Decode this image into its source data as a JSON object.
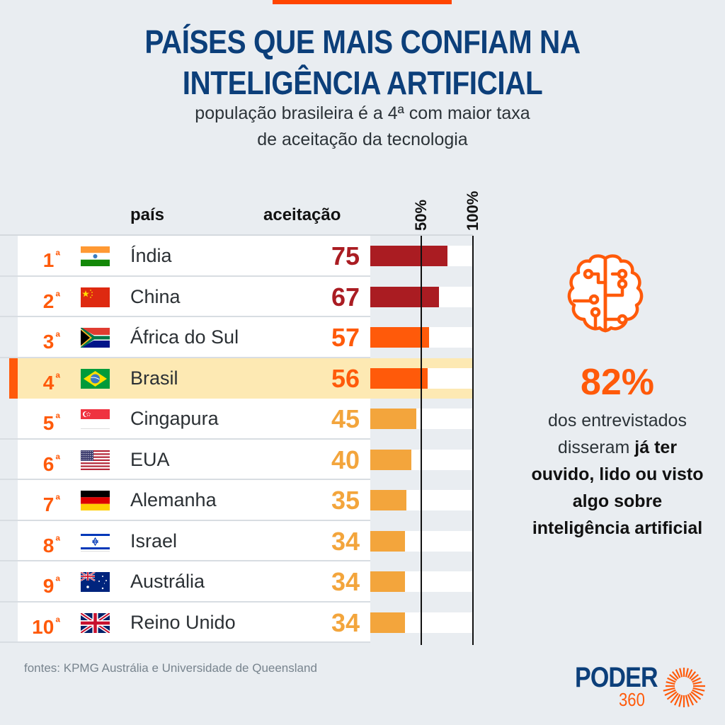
{
  "header": {
    "title_line1": "PAÍSES QUE MAIS CONFIAM NA",
    "title_line2": "INTELIGÊNCIA ARTIFICIAL",
    "subtitle_line1": "população brasileira é a 4ª com maior taxa",
    "subtitle_line2": "de aceitação da tecnologia"
  },
  "columns": {
    "country": "país",
    "acceptance": "aceitação",
    "axis_50": "50%",
    "axis_100": "100%"
  },
  "colors": {
    "accent": "#ff5a0a",
    "title_blue": "#0c3f7a",
    "dark_red": "#aa1c22",
    "orange": "#ff5a0a",
    "light_orange": "#f3a53c",
    "highlight": "#fde9b3",
    "background": "#e9edf1"
  },
  "chart_data": {
    "type": "bar",
    "orientation": "horizontal",
    "title": "PAÍSES QUE MAIS CONFIAM NA INTELIGÊNCIA ARTIFICIAL",
    "subtitle": "população brasileira é a 4ª com maior taxa de aceitação da tecnologia",
    "xlabel": "aceitação",
    "ylabel": "país",
    "xlim": [
      0,
      100
    ],
    "x_ticks": [
      "50%",
      "100%"
    ],
    "highlighted": "Brasil",
    "rows": [
      {
        "rank": "1",
        "rank_suffix": "ª",
        "country": "Índia",
        "flag": "india-flag",
        "value": 75,
        "label": "75",
        "color": "#aa1c22"
      },
      {
        "rank": "2",
        "rank_suffix": "ª",
        "country": "China",
        "flag": "china-flag",
        "value": 67,
        "label": "67",
        "color": "#aa1c22"
      },
      {
        "rank": "3",
        "rank_suffix": "ª",
        "country": "África do Sul",
        "flag": "south-africa-flag",
        "value": 57,
        "label": "57",
        "color": "#ff5a0a"
      },
      {
        "rank": "4",
        "rank_suffix": "ª",
        "country": "Brasil",
        "flag": "brazil-flag",
        "value": 56,
        "label": "56",
        "color": "#ff5a0a"
      },
      {
        "rank": "5",
        "rank_suffix": "ª",
        "country": "Cingapura",
        "flag": "singapore-flag",
        "value": 45,
        "label": "45",
        "color": "#f3a53c"
      },
      {
        "rank": "6",
        "rank_suffix": "ª",
        "country": "EUA",
        "flag": "usa-flag",
        "value": 40,
        "label": "40",
        "color": "#f3a53c"
      },
      {
        "rank": "7",
        "rank_suffix": "ª",
        "country": "Alemanha",
        "flag": "germany-flag",
        "value": 35,
        "label": "35",
        "color": "#f3a53c"
      },
      {
        "rank": "8",
        "rank_suffix": "ª",
        "country": "Israel",
        "flag": "israel-flag",
        "value": 34,
        "label": "34",
        "color": "#f3a53c"
      },
      {
        "rank": "9",
        "rank_suffix": "ª",
        "country": "Austrália",
        "flag": "australia-flag",
        "value": 34,
        "label": "34",
        "color": "#f3a53c"
      },
      {
        "rank": "10",
        "rank_suffix": "ª",
        "country": "Reino Unido",
        "flag": "uk-flag",
        "value": 34,
        "label": "34",
        "color": "#f3a53c"
      }
    ]
  },
  "sidebar": {
    "icon": "brain-circuit-icon",
    "stat": "82%",
    "text_plain_1": "dos entrevistados",
    "text_plain_2": "disseram ",
    "text_bold_1": "já ter",
    "text_bold_2": "ouvido, lido ou visto",
    "text_bold_3": "algo sobre",
    "text_bold_4": "inteligência artificial"
  },
  "footer": {
    "source": "fontes: KPMG Austrália e Universidade de Queensland",
    "logo_word": "PODER",
    "logo_number": "360"
  }
}
